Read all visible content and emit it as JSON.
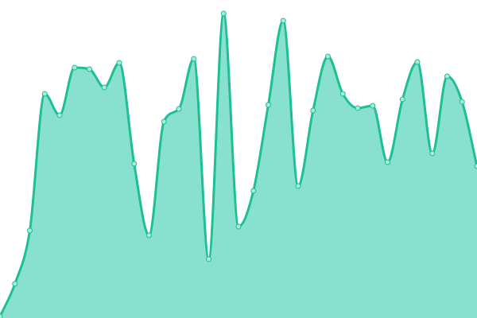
{
  "chart_data": {
    "type": "area",
    "title": "",
    "xlabel": "",
    "ylabel": "",
    "x": [
      0,
      1,
      2,
      3,
      4,
      5,
      6,
      7,
      8,
      9,
      10,
      11,
      12,
      13,
      14,
      15,
      16,
      17,
      18,
      19,
      20,
      21,
      22,
      23,
      24,
      25,
      26,
      27,
      28,
      29,
      30,
      31,
      32
    ],
    "series": [
      {
        "values": [
          2,
          43,
          110,
          282,
          255,
          315,
          313,
          290,
          321,
          194,
          104,
          247,
          263,
          326,
          74,
          383,
          115,
          160,
          268,
          374,
          166,
          261,
          329,
          282,
          264,
          267,
          196,
          275,
          322,
          207,
          304,
          272,
          191
        ]
      }
    ],
    "ylim": [
      0,
      400
    ],
    "grid": false,
    "axes_visible": false,
    "smooth": true,
    "show_markers": true,
    "colors": {
      "line": "#1dbf95",
      "fill": "#88e0cf",
      "marker_fill": "#a8ecdc",
      "marker_stroke": "#1dbf95"
    }
  }
}
